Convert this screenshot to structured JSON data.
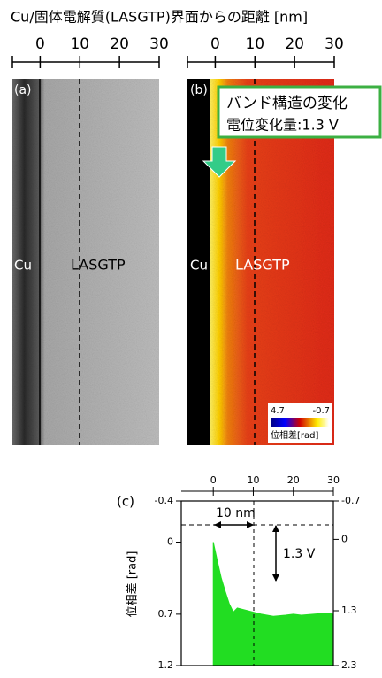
{
  "header": {
    "title": "Cu/固体電解質(LASGTP)界面からの距離 [nm]"
  },
  "top_axis": {
    "xlim": [
      -7,
      30
    ],
    "xticks": [
      0,
      10,
      20,
      30
    ]
  },
  "panel_a": {
    "label": "(a)",
    "left": "Cu",
    "right": "LASGTP"
  },
  "panel_b": {
    "label": "(b)",
    "left": "Cu",
    "right": "LASGTP",
    "callout": [
      "バンド構造の変化",
      "電位変化量:1.3 V"
    ],
    "colorbar": {
      "max": 4.7,
      "min": -0.7,
      "label": "位相差[rad]"
    }
  },
  "chart_data": {
    "type": "area",
    "label": "(c)",
    "y_label": "位相差 [rad]",
    "x": [
      0,
      1,
      2,
      3,
      4,
      5,
      6,
      8,
      10,
      12,
      15,
      18,
      20,
      22,
      25,
      28,
      30
    ],
    "series": [
      {
        "color": "#22dd22",
        "values": [
          0,
          0.18,
          0.35,
          0.48,
          0.6,
          0.68,
          0.64,
          0.66,
          0.68,
          0.7,
          0.72,
          0.71,
          0.7,
          0.71,
          0.7,
          0.69,
          0.7
        ]
      }
    ],
    "xlim": [
      -8,
      30
    ],
    "xticks": [
      0,
      10,
      20,
      30
    ],
    "ylim": [
      -0.4,
      1.2
    ],
    "yticks": [
      -0.4,
      0,
      0.7,
      1.2
    ],
    "y2lim": [
      -0.7,
      2.3
    ],
    "y2ticks": [
      -0.7,
      0,
      1.3,
      2.3
    ],
    "annotations": [
      "10 nm",
      "1.3 V"
    ]
  }
}
